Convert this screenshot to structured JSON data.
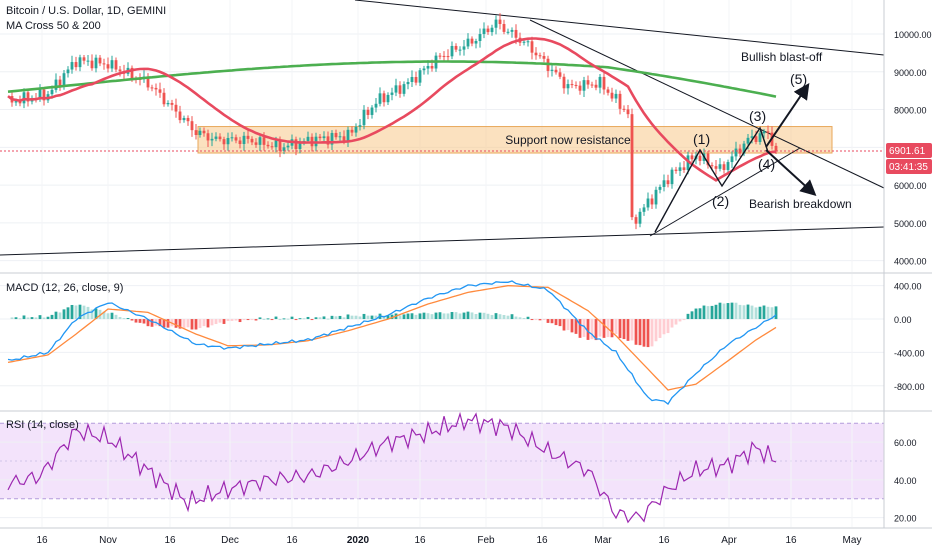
{
  "header": {
    "title": "Bitcoin / U.S. Dollar, 1D, GEMINI",
    "subtitle": "MA Cross 50 & 200"
  },
  "price_badges": {
    "last_price": "6901.61",
    "countdown": "03:41:35"
  },
  "annotations": {
    "support_zone": "Support now resistance",
    "bullish": "Bullish blast-off",
    "bearish": "Bearish breakdown",
    "wave_1": "(1)",
    "wave_2": "(2)",
    "wave_3": "(3)",
    "wave_4": "(4)",
    "wave_5": "(5)"
  },
  "colors": {
    "up": "#26a69a",
    "down": "#ef5350",
    "ma_fast": "#e84a5f",
    "ma_slow": "#4caf50",
    "macd": "#2196f3",
    "signal": "#ff8a3d",
    "rsi": "#9c27b0",
    "zone": "#f8c98a",
    "rsi_band": "#f3e3fb"
  },
  "chart_data": [
    {
      "type": "candlestick",
      "title": "Bitcoin / U.S. Dollar, 1D, GEMINI",
      "x_ticks": [
        "16",
        "Nov",
        "16",
        "Dec",
        "16",
        "2020",
        "16",
        "Feb",
        "16",
        "Mar",
        "16",
        "Apr",
        "16",
        "May"
      ],
      "y_ticks": [
        "10000.00",
        "9000.00",
        "8000.00",
        "7000.00",
        "6000.00",
        "5000.00",
        "4000.00"
      ],
      "ylim": [
        3700,
        10900
      ],
      "indicators": [
        "MA 50",
        "MA 200"
      ],
      "last_price": 6901.61,
      "support_zone": [
        6850,
        7550
      ],
      "close_approx": [
        [
          0,
          8200
        ],
        [
          10,
          8400
        ],
        [
          17,
          9300
        ],
        [
          25,
          9200
        ],
        [
          35,
          8700
        ],
        [
          47,
          7400
        ],
        [
          52,
          7200
        ],
        [
          60,
          7200
        ],
        [
          68,
          7000
        ],
        [
          76,
          7200
        ],
        [
          85,
          7300
        ],
        [
          92,
          8200
        ],
        [
          100,
          8700
        ],
        [
          108,
          9400
        ],
        [
          116,
          9800
        ],
        [
          122,
          10300
        ],
        [
          130,
          9700
        ],
        [
          140,
          8600
        ],
        [
          148,
          8700
        ],
        [
          155,
          7900
        ],
        [
          156,
          5000
        ],
        [
          165,
          6200
        ],
        [
          172,
          6800
        ],
        [
          178,
          6400
        ],
        [
          185,
          7200
        ],
        [
          190,
          7400
        ],
        [
          192,
          6900
        ]
      ]
    },
    {
      "type": "macd",
      "title": "MACD (12, 26, close, 9)",
      "y_ticks": [
        "400.00",
        "0.00",
        "-400.00",
        "-800.00"
      ],
      "ylim": [
        -1090,
        540
      ],
      "macd_approx": [
        [
          0,
          -500
        ],
        [
          10,
          -400
        ],
        [
          17,
          0
        ],
        [
          25,
          200
        ],
        [
          35,
          0
        ],
        [
          47,
          -300
        ],
        [
          55,
          -350
        ],
        [
          65,
          -300
        ],
        [
          75,
          -250
        ],
        [
          85,
          -100
        ],
        [
          95,
          50
        ],
        [
          105,
          250
        ],
        [
          115,
          400
        ],
        [
          125,
          450
        ],
        [
          135,
          350
        ],
        [
          145,
          -150
        ],
        [
          152,
          -400
        ],
        [
          160,
          -950
        ],
        [
          165,
          -1000
        ],
        [
          172,
          -650
        ],
        [
          180,
          -300
        ],
        [
          187,
          -100
        ],
        [
          192,
          50
        ]
      ],
      "signal_approx": [
        [
          0,
          -520
        ],
        [
          10,
          -430
        ],
        [
          17,
          -180
        ],
        [
          25,
          120
        ],
        [
          35,
          80
        ],
        [
          47,
          -180
        ],
        [
          55,
          -320
        ],
        [
          65,
          -310
        ],
        [
          75,
          -260
        ],
        [
          85,
          -140
        ],
        [
          95,
          0
        ],
        [
          105,
          180
        ],
        [
          115,
          320
        ],
        [
          125,
          400
        ],
        [
          135,
          380
        ],
        [
          145,
          100
        ],
        [
          152,
          -200
        ],
        [
          160,
          -600
        ],
        [
          165,
          -850
        ],
        [
          172,
          -780
        ],
        [
          180,
          -500
        ],
        [
          187,
          -250
        ],
        [
          192,
          -100
        ]
      ]
    },
    {
      "type": "rsi",
      "title": "RSI (14, close)",
      "y_ticks": [
        "60.00",
        "40.00",
        "20.00"
      ],
      "ylim": [
        15,
        76
      ],
      "bands": [
        30,
        70
      ],
      "rsi_approx": [
        [
          0,
          38
        ],
        [
          8,
          42
        ],
        [
          17,
          66
        ],
        [
          25,
          62
        ],
        [
          35,
          45
        ],
        [
          45,
          28
        ],
        [
          55,
          35
        ],
        [
          65,
          40
        ],
        [
          75,
          42
        ],
        [
          85,
          50
        ],
        [
          95,
          60
        ],
        [
          105,
          65
        ],
        [
          115,
          72
        ],
        [
          125,
          68
        ],
        [
          135,
          55
        ],
        [
          145,
          45
        ],
        [
          152,
          22
        ],
        [
          158,
          20
        ],
        [
          165,
          35
        ],
        [
          172,
          45
        ],
        [
          180,
          48
        ],
        [
          187,
          57
        ],
        [
          192,
          50
        ]
      ]
    }
  ]
}
